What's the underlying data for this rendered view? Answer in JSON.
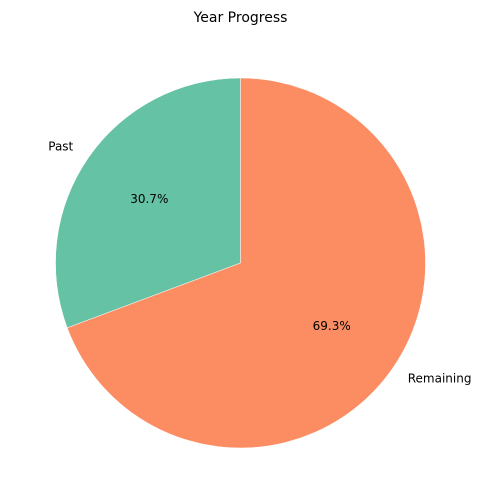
{
  "chart_data": {
    "type": "pie",
    "title": "Year Progress",
    "start_angle_deg": 90,
    "direction": "counterclockwise",
    "slices": [
      {
        "label": "Past",
        "value": 30.7,
        "percent_label": "30.7%",
        "color": "#66c2a5"
      },
      {
        "label": "Remaining",
        "value": 69.3,
        "percent_label": "69.3%",
        "color": "#fc8d62"
      }
    ]
  }
}
